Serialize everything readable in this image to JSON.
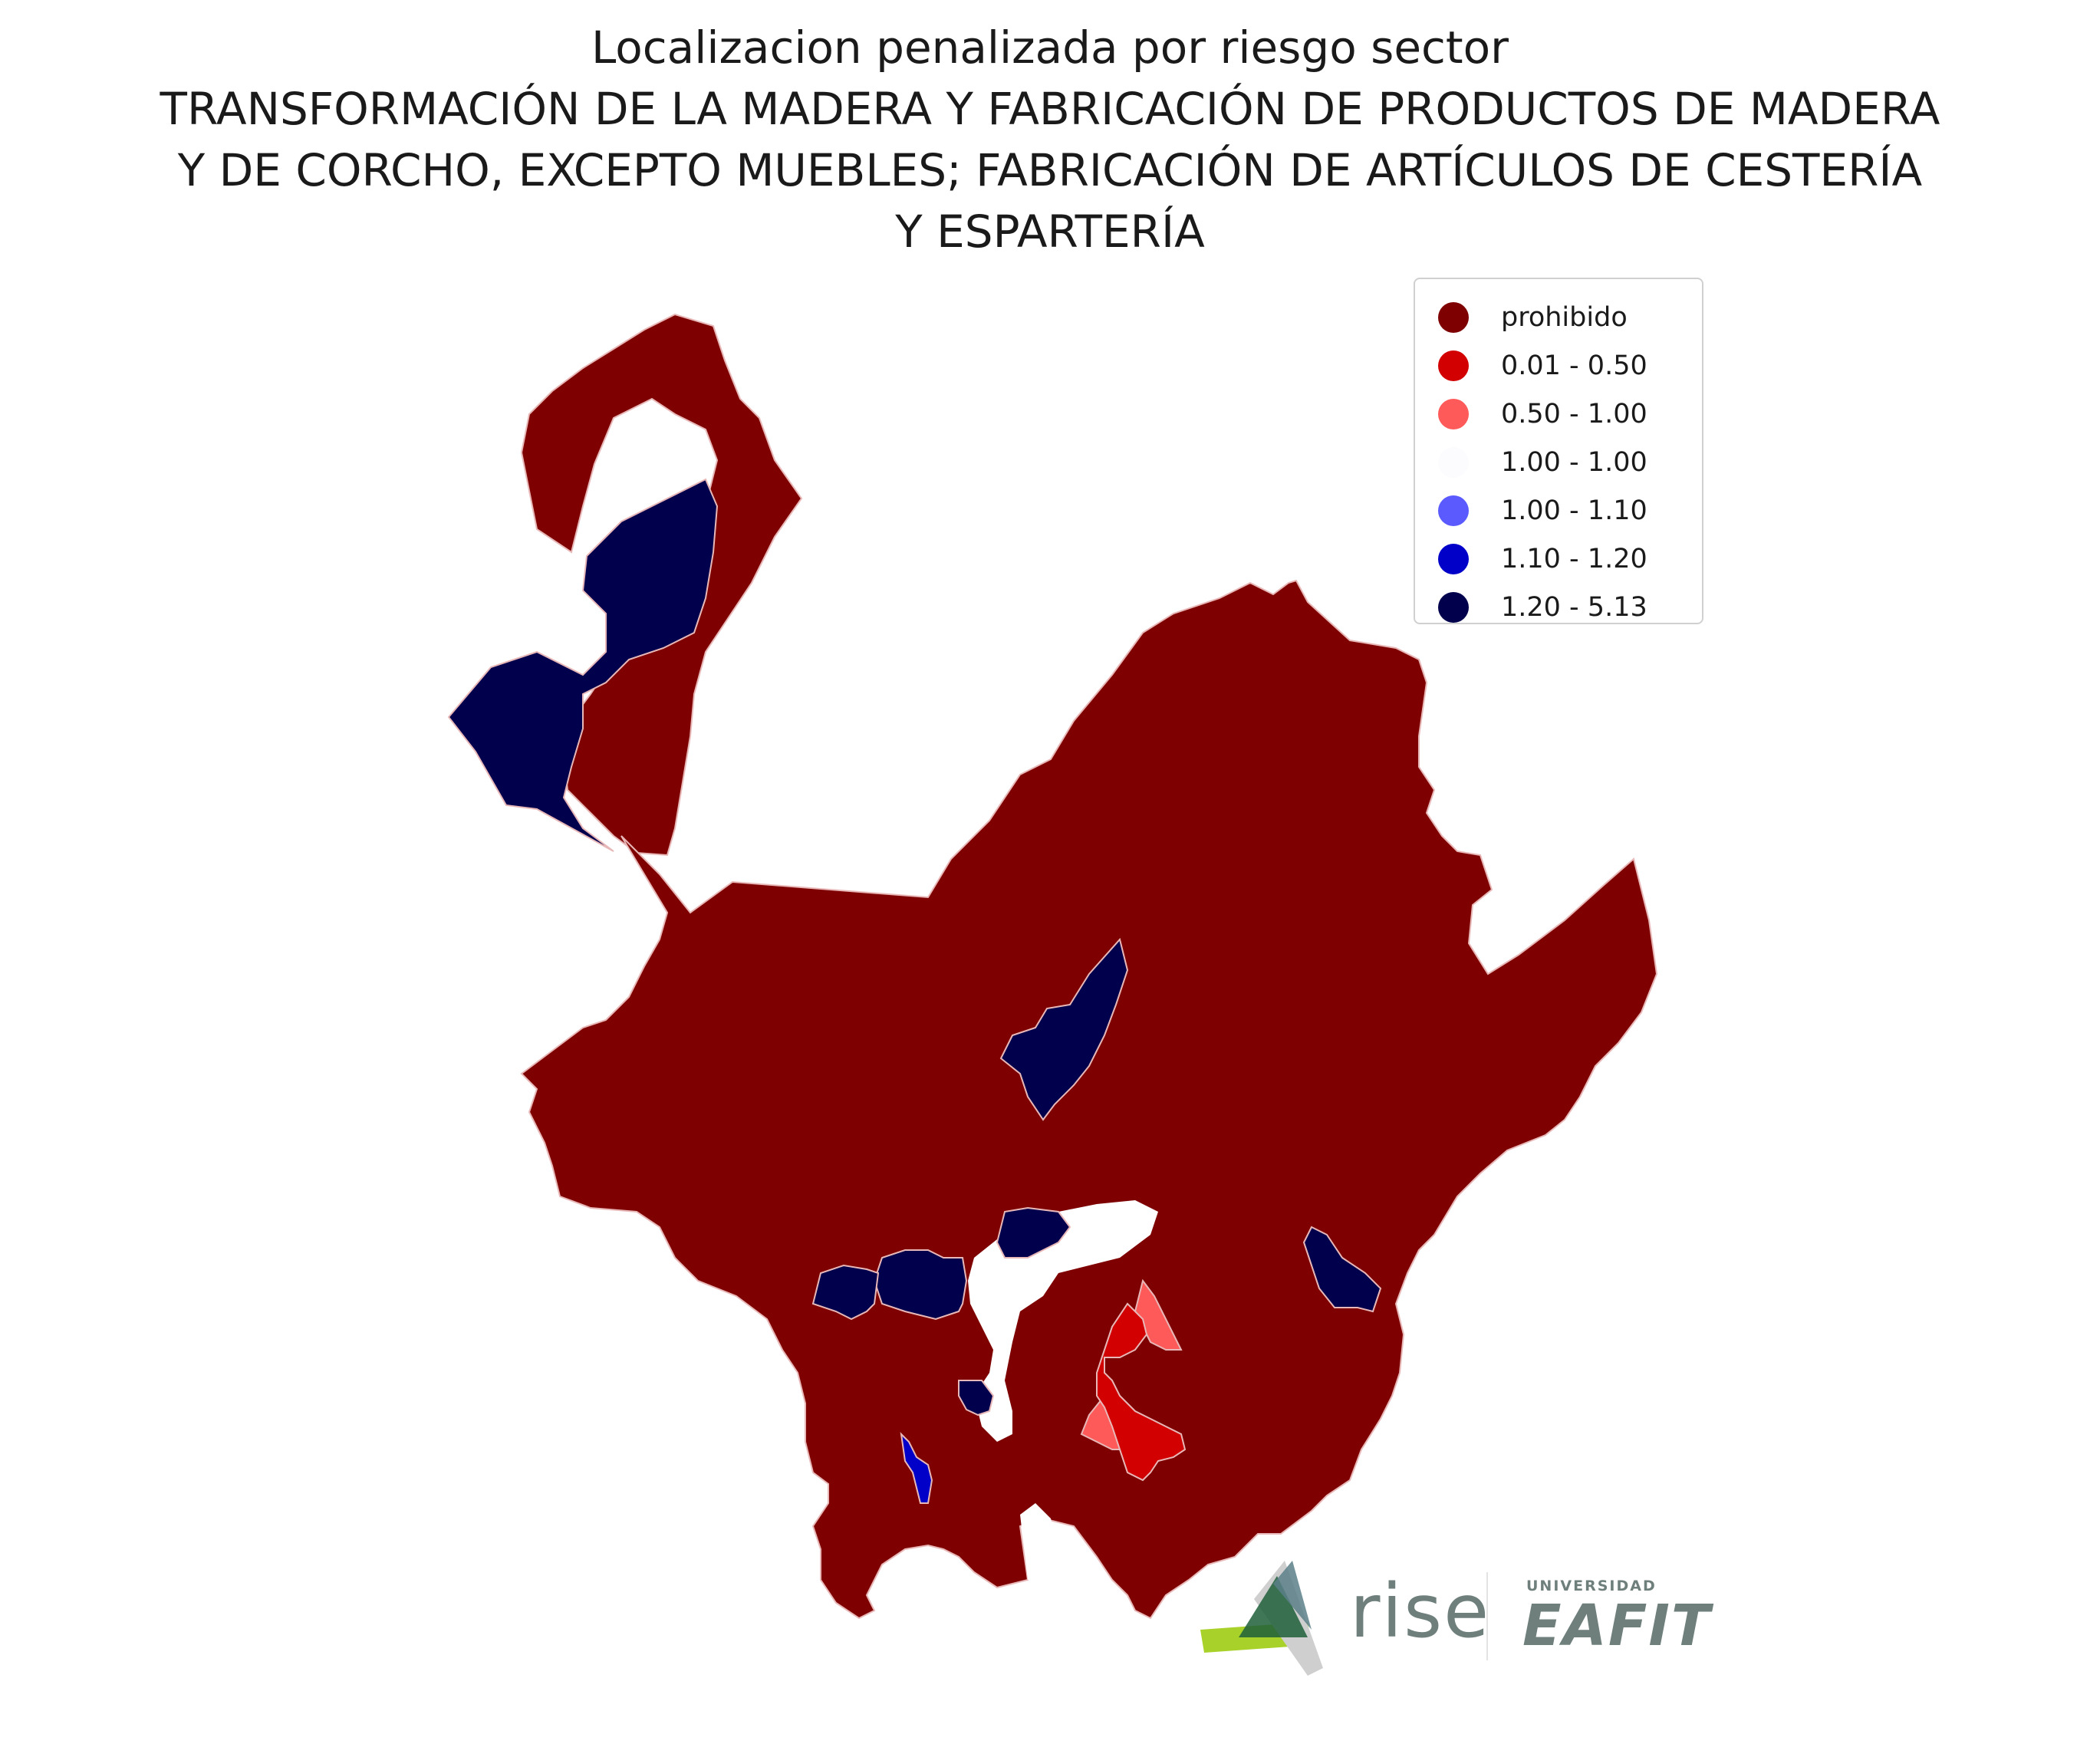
{
  "title": {
    "line1": "Localizacion penalizada por riesgo sector",
    "line2": "TRANSFORMACIÓN DE LA MADERA Y FABRICACIÓN DE PRODUCTOS DE MADERA",
    "line3": "Y DE CORCHO, EXCEPTO MUEBLES; FABRICACIÓN DE ARTÍCULOS DE CESTERÍA",
    "line4": "Y ESPARTERÍA"
  },
  "legend": [
    {
      "label": "prohibido",
      "color": "#7f0000"
    },
    {
      "label": "0.01 - 0.50",
      "color": "#d20000"
    },
    {
      "label": "0.50 - 1.00",
      "color": "#ff5a5a"
    },
    {
      "label": "1.00 - 1.00",
      "color": "#fcfcfe"
    },
    {
      "label": "1.00 - 1.10",
      "color": "#5a5aff"
    },
    {
      "label": "1.10 - 1.20",
      "color": "#0000c8"
    },
    {
      "label": "1.20 - 5.13",
      "color": "#00004d"
    }
  ],
  "logos": {
    "rise": "rise",
    "eafit_top": "UNIVERSIDAD",
    "eafit_main": "EAFIT"
  },
  "colors": {
    "prohibido": "#7f0000",
    "high": "#00004d",
    "mid_blue": "#0000c8",
    "red": "#d20000",
    "light_red": "#ff5a5a",
    "border": "#e8b8b8"
  }
}
